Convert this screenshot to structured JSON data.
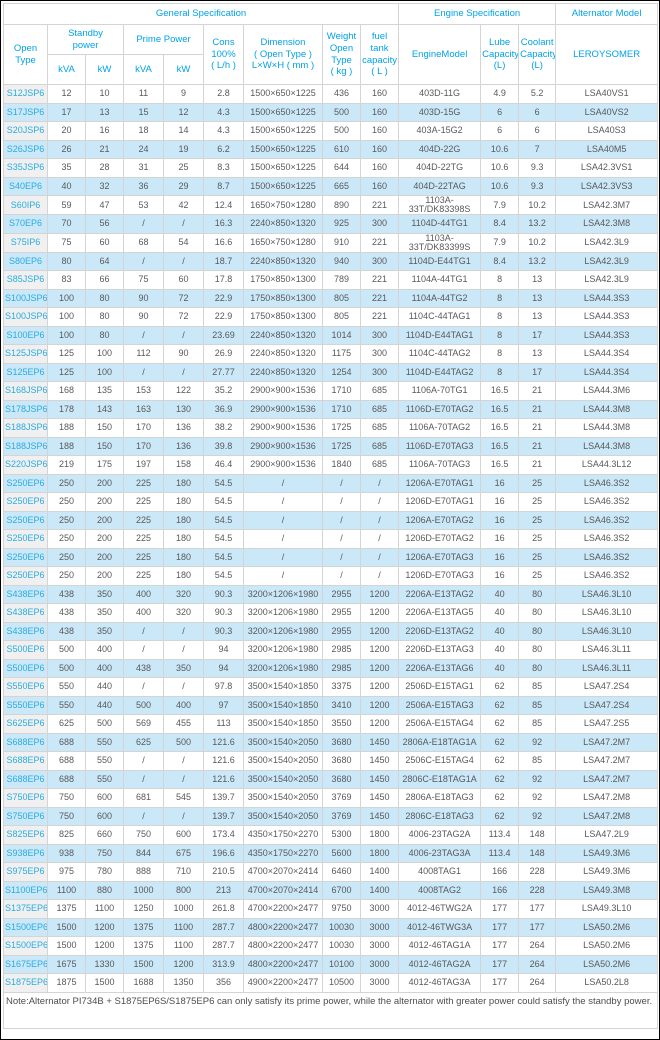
{
  "colors": {
    "accent_blue": "#00a2e8",
    "model_link_blue": "#29abe2",
    "stripe_blue": "#cbe8f9",
    "model_column_gray": "#f0f0f0",
    "body_text": "#595959",
    "grid_line": "#d4d4d4"
  },
  "table": {
    "group_headers": {
      "general": "General Specification",
      "engine": "Engine Specification",
      "alternator": "Alternator Model"
    },
    "headers": {
      "open_type": "Open Type",
      "standby": "Standby\npower",
      "prime": "Prime Power",
      "kva": "kVA",
      "kw": "kW",
      "cons": "Cons\n100%\n( L/h )",
      "dimension": "Dimension\n( Open Type )\nL×W×H ( mm )",
      "weight": "Weight\nOpen Type\n( kg )",
      "fuel_tank": "fuel tank\ncapacity\n( L )",
      "engine_model": "EngineModel",
      "lube": "Lube\nCapacity\n(L)",
      "coolant": "Coolant\nCapacity\n(L)",
      "leroysomer": "LEROYSOMER"
    },
    "column_keys": [
      "model",
      "standby-kva",
      "standby-kw",
      "prime-kva",
      "prime-kw",
      "cons",
      "dimension",
      "weight",
      "fuel-tank",
      "engine-model",
      "lube",
      "coolant",
      "alternator"
    ],
    "rows": [
      [
        "S12JSP6",
        "12",
        "10",
        "11",
        "9",
        "2.8",
        "1500×650×1225",
        "436",
        "160",
        "403D-11G",
        "4.9",
        "5.2",
        "LSA40VS1"
      ],
      [
        "S17JSP6",
        "17",
        "13",
        "15",
        "12",
        "4.3",
        "1500×650×1225",
        "500",
        "160",
        "403D-15G",
        "6",
        "6",
        "LSA40VS2"
      ],
      [
        "S20JSP6",
        "20",
        "16",
        "18",
        "14",
        "4.3",
        "1500×650×1225",
        "500",
        "160",
        "403A-15G2",
        "6",
        "6",
        "LSA40S3"
      ],
      [
        "S26JSP6",
        "26",
        "21",
        "24",
        "19",
        "6.2",
        "1500×650×1225",
        "610",
        "160",
        "404D-22G",
        "10.6",
        "7",
        "LSA40M5"
      ],
      [
        "S35JSP6",
        "35",
        "28",
        "31",
        "25",
        "8.3",
        "1500×650×1225",
        "644",
        "160",
        "404D-22TG",
        "10.6",
        "9.3",
        "LSA42.3VS1"
      ],
      [
        "S40EP6",
        "40",
        "32",
        "36",
        "29",
        "8.7",
        "1500×650×1225",
        "665",
        "160",
        "404D-22TAG",
        "10.6",
        "9.3",
        "LSA42.3VS3"
      ],
      [
        "S60IP6",
        "59",
        "47",
        "53",
        "42",
        "12.4",
        "1650×750×1280",
        "890",
        "221",
        "1103A-33T/DK83398S",
        "7.9",
        "10.2",
        "LSA42.3M7"
      ],
      [
        "S70EP6",
        "70",
        "56",
        "/",
        "/",
        "16.3",
        "2240×850×1320",
        "925",
        "300",
        "1104D-44TG1",
        "8.4",
        "13.2",
        "LSA42.3M8"
      ],
      [
        "S75IP6",
        "75",
        "60",
        "68",
        "54",
        "16.6",
        "1650×750×1280",
        "910",
        "221",
        "1103A-33T/DK83399S",
        "7.9",
        "10.2",
        "LSA42.3L9"
      ],
      [
        "S80EP6",
        "80",
        "64",
        "/",
        "/",
        "18.7",
        "2240×850×1320",
        "940",
        "300",
        "1104D-E44TG1",
        "8.4",
        "13.2",
        "LSA42.3L9"
      ],
      [
        "S85JSP6",
        "83",
        "66",
        "75",
        "60",
        "17.8",
        "1750×850×1300",
        "789",
        "221",
        "1104A-44TG1",
        "8",
        "13",
        "LSA42.3L9"
      ],
      [
        "S100JSP6",
        "100",
        "80",
        "90",
        "72",
        "22.9",
        "1750×850×1300",
        "805",
        "221",
        "1104A-44TG2",
        "8",
        "13",
        "LSA44.3S3"
      ],
      [
        "S100JSP6",
        "100",
        "80",
        "90",
        "72",
        "22.9",
        "1750×850×1300",
        "805",
        "221",
        "1104C-44TAG1",
        "8",
        "13",
        "LSA44.3S3"
      ],
      [
        "S100EP6",
        "100",
        "80",
        "/",
        "/",
        "23.69",
        "2240×850×1320",
        "1014",
        "300",
        "1104D-E44TAG1",
        "8",
        "17",
        "LSA44.3S3"
      ],
      [
        "S125JSP6",
        "125",
        "100",
        "112",
        "90",
        "26.9",
        "2240×850×1320",
        "1175",
        "300",
        "1104C-44TAG2",
        "8",
        "13",
        "LSA44.3S4"
      ],
      [
        "S125EP6",
        "125",
        "100",
        "/",
        "/",
        "27.77",
        "2240×850×1320",
        "1254",
        "300",
        "1104D-E44TAG2",
        "8",
        "17",
        "LSA44.3S4"
      ],
      [
        "S168JSP6",
        "168",
        "135",
        "153",
        "122",
        "35.2",
        "2900×900×1536",
        "1710",
        "685",
        "1106A-70TG1",
        "16.5",
        "21",
        "LSA44.3M6"
      ],
      [
        "S178JSP6",
        "178",
        "143",
        "163",
        "130",
        "36.9",
        "2900×900×1536",
        "1710",
        "685",
        "1106D-E70TAG2",
        "16.5",
        "21",
        "LSA44.3M8"
      ],
      [
        "S188JSP6",
        "188",
        "150",
        "170",
        "136",
        "38.2",
        "2900×900×1536",
        "1725",
        "685",
        "1106A-70TAG2",
        "16.5",
        "21",
        "LSA44.3M8"
      ],
      [
        "S188JSP6",
        "188",
        "150",
        "170",
        "136",
        "39.8",
        "2900×900×1536",
        "1725",
        "685",
        "1106D-E70TAG3",
        "16.5",
        "21",
        "LSA44.3M8"
      ],
      [
        "S220JSP6",
        "219",
        "175",
        "197",
        "158",
        "46.4",
        "2900×900×1536",
        "1840",
        "685",
        "1106A-70TAG3",
        "16.5",
        "21",
        "LSA44.3L12"
      ],
      [
        "S250EP6",
        "250",
        "200",
        "225",
        "180",
        "54.5",
        "/",
        "/",
        "/",
        "1206A-E70TAG1",
        "16",
        "25",
        "LSA46.3S2"
      ],
      [
        "S250EP6",
        "250",
        "200",
        "225",
        "180",
        "54.5",
        "/",
        "/",
        "/",
        "1206D-E70TAG1",
        "16",
        "25",
        "LSA46.3S2"
      ],
      [
        "S250EP6",
        "250",
        "200",
        "225",
        "180",
        "54.5",
        "/",
        "/",
        "/",
        "1206A-E70TAG2",
        "16",
        "25",
        "LSA46.3S2"
      ],
      [
        "S250EP6",
        "250",
        "200",
        "225",
        "180",
        "54.5",
        "/",
        "/",
        "/",
        "1206D-E70TAG2",
        "16",
        "25",
        "LSA46.3S2"
      ],
      [
        "S250EP6",
        "250",
        "200",
        "225",
        "180",
        "54.5",
        "/",
        "/",
        "/",
        "1206A-E70TAG3",
        "16",
        "25",
        "LSA46.3S2"
      ],
      [
        "S250EP6",
        "250",
        "200",
        "225",
        "180",
        "54.5",
        "/",
        "/",
        "/",
        "1206D-E70TAG3",
        "16",
        "25",
        "LSA46.3S2"
      ],
      [
        "S438EP6",
        "438",
        "350",
        "400",
        "320",
        "90.3",
        "3200×1206×1980",
        "2955",
        "1200",
        "2206A-E13TAG2",
        "40",
        "80",
        "LSA46.3L10"
      ],
      [
        "S438EP6",
        "438",
        "350",
        "400",
        "320",
        "90.3",
        "3200×1206×1980",
        "2955",
        "1200",
        "2206A-E13TAG5",
        "40",
        "80",
        "LSA46.3L10"
      ],
      [
        "S438EP6",
        "438",
        "350",
        "/",
        "/",
        "90.3",
        "3200×1206×1980",
        "2955",
        "1200",
        "2206D-E13TAG2",
        "40",
        "80",
        "LSA46.3L10"
      ],
      [
        "S500EP6",
        "500",
        "400",
        "/",
        "/",
        "94",
        "3200×1206×1980",
        "2985",
        "1200",
        "2206D-E13TAG3",
        "40",
        "80",
        "LSA46.3L11"
      ],
      [
        "S500EP6",
        "500",
        "400",
        "438",
        "350",
        "94",
        "3200×1206×1980",
        "2985",
        "1200",
        "2206A-E13TAG6",
        "40",
        "80",
        "LSA46.3L11"
      ],
      [
        "S550EP6",
        "550",
        "440",
        "/",
        "/",
        "97.8",
        "3500×1540×1850",
        "3375",
        "1200",
        "2506D-E15TAG1",
        "62",
        "85",
        "LSA47.2S4"
      ],
      [
        "S550EP6",
        "550",
        "440",
        "500",
        "400",
        "97",
        "3500×1540×1850",
        "3410",
        "1200",
        "2506A-E15TAG3",
        "62",
        "85",
        "LSA47.2S4"
      ],
      [
        "S625EP6",
        "625",
        "500",
        "569",
        "455",
        "113",
        "3500×1540×1850",
        "3550",
        "1200",
        "2506A-E15TAG4",
        "62",
        "85",
        "LSA47.2S5"
      ],
      [
        "S688EP6",
        "688",
        "550",
        "625",
        "500",
        "121.6",
        "3500×1540×2050",
        "3680",
        "1450",
        "2806A-E18TAG1A",
        "62",
        "92",
        "LSA47.2M7"
      ],
      [
        "S688EP6",
        "688",
        "550",
        "/",
        "/",
        "121.6",
        "3500×1540×2050",
        "3680",
        "1450",
        "2506C-E15TAG4",
        "62",
        "85",
        "LSA47.2M7"
      ],
      [
        "S688EP6",
        "688",
        "550",
        "/",
        "/",
        "121.6",
        "3500×1540×2050",
        "3680",
        "1450",
        "2806C-E18TAG1A",
        "62",
        "92",
        "LSA47.2M7"
      ],
      [
        "S750EP6",
        "750",
        "600",
        "681",
        "545",
        "139.7",
        "3500×1540×2050",
        "3769",
        "1450",
        "2806A-E18TAG3",
        "62",
        "92",
        "LSA47.2M8"
      ],
      [
        "S750EP6",
        "750",
        "600",
        "/",
        "/",
        "139.7",
        "3500×1540×2050",
        "3769",
        "1450",
        "2806C-E18TAG3",
        "62",
        "92",
        "LSA47.2M8"
      ],
      [
        "S825EP6",
        "825",
        "660",
        "750",
        "600",
        "173.4",
        "4350×1750×2270",
        "5300",
        "1800",
        "4006-23TAG2A",
        "113.4",
        "148",
        "LSA47.2L9"
      ],
      [
        "S938EP6",
        "938",
        "750",
        "844",
        "675",
        "196.6",
        "4350×1750×2270",
        "5600",
        "1800",
        "4006-23TAG3A",
        "113.4",
        "148",
        "LSA49.3M6"
      ],
      [
        "S975EP6",
        "975",
        "780",
        "888",
        "710",
        "210.5",
        "4700×2070×2414",
        "6460",
        "1400",
        "4008TAG1",
        "166",
        "228",
        "LSA49.3M6"
      ],
      [
        "S1100EP6",
        "1100",
        "880",
        "1000",
        "800",
        "213",
        "4700×2070×2414",
        "6700",
        "1400",
        "4008TAG2",
        "166",
        "228",
        "LSA49.3M8"
      ],
      [
        "S1375EP6",
        "1375",
        "1100",
        "1250",
        "1000",
        "261.8",
        "4700×2200×2477",
        "9750",
        "3000",
        "4012-46TWG2A",
        "177",
        "177",
        "LSA49.3L10"
      ],
      [
        "S1500EP6",
        "1500",
        "1200",
        "1375",
        "1100",
        "287.7",
        "4800×2200×2477",
        "10030",
        "3000",
        "4012-46TWG3A",
        "177",
        "177",
        "LSA50.2M6"
      ],
      [
        "S1500EP6",
        "1500",
        "1200",
        "1375",
        "1100",
        "287.7",
        "4800×2200×2477",
        "10030",
        "3000",
        "4012-46TAG1A",
        "177",
        "264",
        "LSA50.2M6"
      ],
      [
        "S1675EP6",
        "1675",
        "1330",
        "1500",
        "1200",
        "313.9",
        "4800×2200×2477",
        "10100",
        "3000",
        "4012-46TAG2A",
        "177",
        "264",
        "LSA50.2M6"
      ],
      [
        "S1875EP6",
        "1875",
        "1500",
        "1688",
        "1350",
        "356",
        "4900×2200×2477",
        "10500",
        "3000",
        "4012-46TAG3A",
        "177",
        "264",
        "LSA50.2L8"
      ]
    ],
    "note": "Note:Alternator PI734B + S1875EP6S/S1875EP6 can only satisfy its prime power, while the alternator with greater power could satisfy the standby power."
  }
}
